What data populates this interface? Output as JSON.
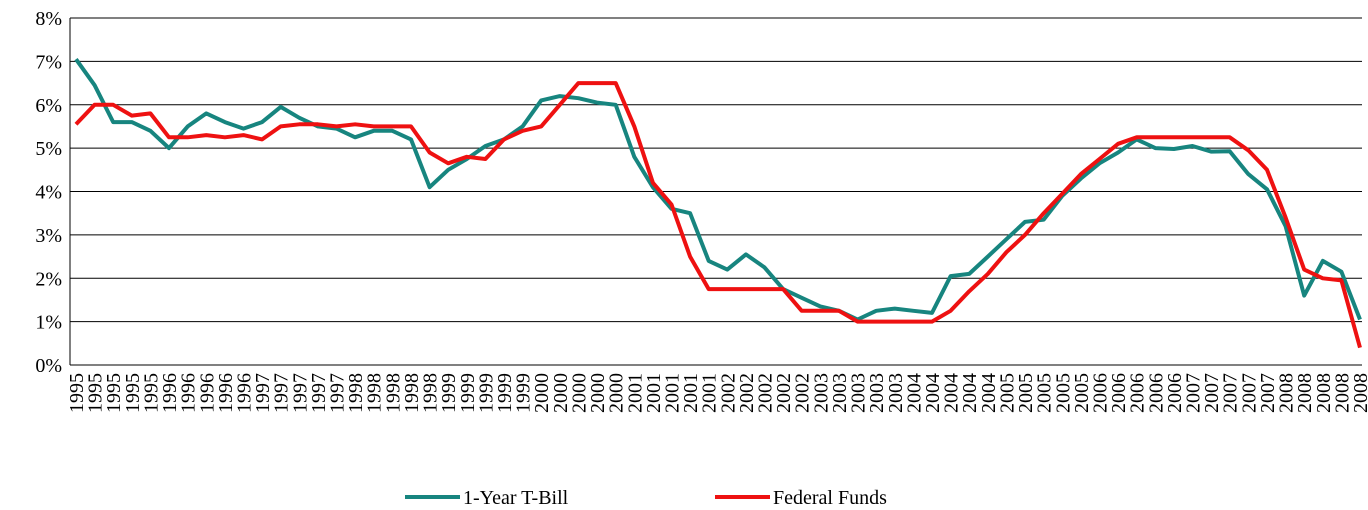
{
  "chart_data": {
    "type": "line",
    "categories": [
      "1995",
      "1995",
      "1995",
      "1995",
      "1995",
      "1996",
      "1996",
      "1996",
      "1996",
      "1996",
      "1997",
      "1997",
      "1997",
      "1997",
      "1997",
      "1998",
      "1998",
      "1998",
      "1998",
      "1998",
      "1999",
      "1999",
      "1999",
      "1999",
      "1999",
      "2000",
      "2000",
      "2000",
      "2000",
      "2000",
      "2001",
      "2001",
      "2001",
      "2001",
      "2001",
      "2002",
      "2002",
      "2002",
      "2002",
      "2002",
      "2003",
      "2003",
      "2003",
      "2003",
      "2003",
      "2004",
      "2004",
      "2004",
      "2004",
      "2004",
      "2005",
      "2005",
      "2005",
      "2005",
      "2005",
      "2006",
      "2006",
      "2006",
      "2006",
      "2006",
      "2007",
      "2007",
      "2007",
      "2007",
      "2007",
      "2008",
      "2008",
      "2008",
      "2008",
      "2008"
    ],
    "series": [
      {
        "name": "1-Year T-Bill",
        "color": "#17857f",
        "values": [
          7.05,
          6.45,
          5.6,
          5.6,
          5.4,
          5.0,
          5.5,
          5.8,
          5.6,
          5.45,
          5.6,
          5.95,
          5.7,
          5.5,
          5.45,
          5.25,
          5.4,
          5.4,
          5.2,
          4.1,
          4.5,
          4.75,
          5.05,
          5.2,
          5.5,
          6.1,
          6.2,
          6.15,
          6.05,
          6.0,
          4.8,
          4.1,
          3.6,
          3.5,
          2.4,
          2.2,
          2.55,
          2.25,
          1.75,
          1.55,
          1.35,
          1.25,
          1.05,
          1.25,
          1.3,
          1.25,
          1.2,
          2.05,
          2.1,
          2.5,
          2.9,
          3.3,
          3.35,
          3.9,
          4.3,
          4.65,
          4.9,
          5.2,
          5.0,
          4.98,
          5.05,
          4.92,
          4.93,
          4.4,
          4.05,
          3.2,
          1.6,
          2.4,
          2.15,
          1.05
        ]
      },
      {
        "name": "Federal Funds",
        "color": "#ee1111",
        "values": [
          5.55,
          6.0,
          6.0,
          5.75,
          5.8,
          5.25,
          5.25,
          5.3,
          5.25,
          5.3,
          5.2,
          5.5,
          5.55,
          5.55,
          5.5,
          5.55,
          5.5,
          5.5,
          5.5,
          4.9,
          4.65,
          4.8,
          4.75,
          5.2,
          5.4,
          5.5,
          6.0,
          6.5,
          6.5,
          6.5,
          5.5,
          4.2,
          3.7,
          2.5,
          1.75,
          1.75,
          1.75,
          1.75,
          1.75,
          1.25,
          1.25,
          1.25,
          1.0,
          1.0,
          1.0,
          1.0,
          1.0,
          1.25,
          1.7,
          2.1,
          2.6,
          3.0,
          3.5,
          3.95,
          4.4,
          4.75,
          5.1,
          5.25,
          5.25,
          5.25,
          5.25,
          5.25,
          5.25,
          4.95,
          4.5,
          3.4,
          2.2,
          2.0,
          1.95,
          0.4
        ]
      }
    ],
    "ylim": [
      0,
      8
    ],
    "yticks": [
      {
        "value": 0,
        "label": "0%"
      },
      {
        "value": 1,
        "label": "1%"
      },
      {
        "value": 2,
        "label": "2%"
      },
      {
        "value": 3,
        "label": "3%"
      },
      {
        "value": 4,
        "label": "4%"
      },
      {
        "value": 5,
        "label": "5%"
      },
      {
        "value": 6,
        "label": "6%"
      },
      {
        "value": 7,
        "label": "7%"
      },
      {
        "value": 8,
        "label": "8%"
      }
    ],
    "grid": true,
    "legend": "bottom"
  }
}
